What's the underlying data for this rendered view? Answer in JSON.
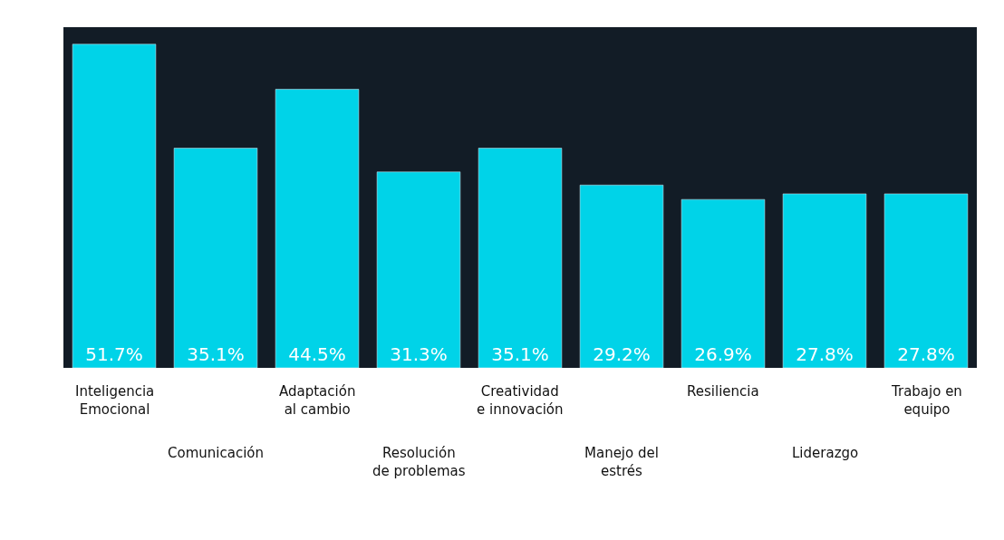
{
  "chart_data": {
    "type": "bar",
    "categories": [
      "Inteligencia\nEmocional",
      "Comunicación",
      "Adaptación\nal cambio",
      "Resolución\nde problemas",
      "Creatividad\ne innovación",
      "Manejo del\nestrés",
      "Resiliencia",
      "Liderazgo",
      "Trabajo en\nequipo"
    ],
    "values": [
      51.7,
      35.1,
      44.5,
      31.3,
      35.1,
      29.2,
      26.9,
      27.8,
      27.8
    ],
    "value_labels": [
      "51.7%",
      "35.1%",
      "44.5%",
      "31.3%",
      "35.1%",
      "29.2%",
      "26.9%",
      "27.8%",
      "27.8%"
    ],
    "color": "#00d3e8"
  }
}
